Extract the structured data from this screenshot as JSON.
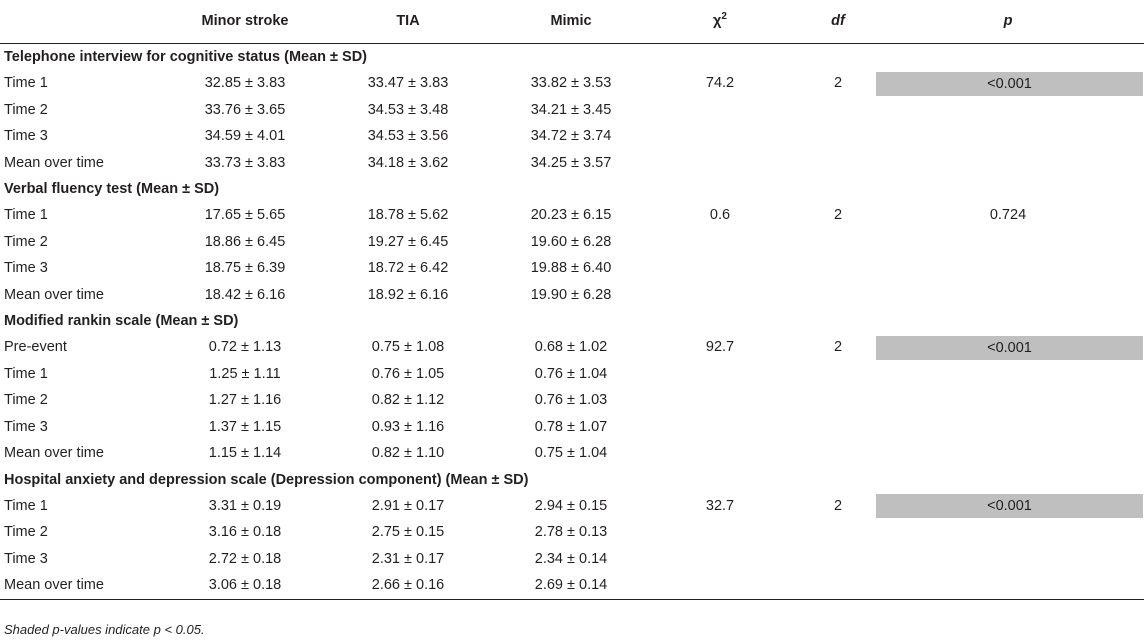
{
  "header": {
    "col_minor": "Minor stroke",
    "col_tia": "TIA",
    "col_mimic": "Mimic",
    "col_chi": "χ",
    "col_chi_sup": "2",
    "col_df": "df",
    "col_p": "p"
  },
  "sections": [
    {
      "title": "Telephone interview for cognitive status (Mean ± SD)",
      "rows": [
        {
          "label": "Time 1",
          "minor": "32.85 ± 3.83",
          "tia": "33.47 ± 3.83",
          "mimic": "33.82 ± 3.53",
          "chi": "74.2",
          "df": "2",
          "p": "<0.001"
        },
        {
          "label": "Time 2",
          "minor": "33.76 ± 3.65",
          "tia": "34.53 ± 3.48",
          "mimic": "34.21 ± 3.45",
          "chi": "",
          "df": "",
          "p": ""
        },
        {
          "label": "Time 3",
          "minor": "34.59 ± 4.01",
          "tia": "34.53 ± 3.56",
          "mimic": "34.72 ± 3.74",
          "chi": "",
          "df": "",
          "p": ""
        },
        {
          "label": "Mean over time",
          "minor": "33.73 ± 3.83",
          "tia": "34.18 ± 3.62",
          "mimic": "34.25 ± 3.57",
          "chi": "",
          "df": "",
          "p": ""
        }
      ]
    },
    {
      "title": "Verbal fluency test (Mean ± SD)",
      "rows": [
        {
          "label": "Time 1",
          "minor": "17.65 ± 5.65",
          "tia": "18.78 ± 5.62",
          "mimic": "20.23 ± 6.15",
          "chi": "0.6",
          "df": "2",
          "p": "0.724"
        },
        {
          "label": "Time 2",
          "minor": "18.86 ± 6.45",
          "tia": "19.27 ± 6.45",
          "mimic": "19.60 ± 6.28",
          "chi": "",
          "df": "",
          "p": ""
        },
        {
          "label": "Time 3",
          "minor": "18.75 ± 6.39",
          "tia": "18.72 ± 6.42",
          "mimic": "19.88 ± 6.40",
          "chi": "",
          "df": "",
          "p": ""
        },
        {
          "label": "Mean over time",
          "minor": "18.42 ± 6.16",
          "tia": "18.92 ± 6.16",
          "mimic": "19.90 ± 6.28",
          "chi": "",
          "df": "",
          "p": ""
        }
      ]
    },
    {
      "title": "Modified rankin scale (Mean ± SD)",
      "rows": [
        {
          "label": "Pre-event",
          "minor": "0.72 ± 1.13",
          "tia": "0.75 ± 1.08",
          "mimic": "0.68 ± 1.02",
          "chi": "92.7",
          "df": "2",
          "p": "<0.001"
        },
        {
          "label": "Time 1",
          "minor": "1.25 ± 1.11",
          "tia": "0.76 ± 1.05",
          "mimic": "0.76 ± 1.04",
          "chi": "",
          "df": "",
          "p": ""
        },
        {
          "label": "Time 2",
          "minor": "1.27 ± 1.16",
          "tia": "0.82 ± 1.12",
          "mimic": "0.76 ± 1.03",
          "chi": "",
          "df": "",
          "p": ""
        },
        {
          "label": "Time 3",
          "minor": "1.37 ± 1.15",
          "tia": "0.93 ± 1.16",
          "mimic": "0.78 ± 1.07",
          "chi": "",
          "df": "",
          "p": ""
        },
        {
          "label": "Mean over time",
          "minor": "1.15 ± 1.14",
          "tia": "0.82 ± 1.10",
          "mimic": "0.75 ± 1.04",
          "chi": "",
          "df": "",
          "p": ""
        }
      ]
    },
    {
      "title": "Hospital anxiety and depression scale (Depression component) (Mean ± SD)",
      "rows": [
        {
          "label": "Time 1",
          "minor": "3.31 ± 0.19",
          "tia": "2.91 ± 0.17",
          "mimic": "2.94 ± 0.15",
          "chi": "32.7",
          "df": "2",
          "p": "<0.001"
        },
        {
          "label": "Time 2",
          "minor": "3.16 ± 0.18",
          "tia": "2.75 ± 0.15",
          "mimic": "2.78 ± 0.13",
          "chi": "",
          "df": "",
          "p": ""
        },
        {
          "label": "Time 3",
          "minor": "2.72 ± 0.18",
          "tia": "2.31 ± 0.17",
          "mimic": "2.34 ± 0.14",
          "chi": "",
          "df": "",
          "p": ""
        },
        {
          "label": "Mean over time",
          "minor": "3.06 ± 0.18",
          "tia": "2.66 ± 0.16",
          "mimic": "2.69 ± 0.14",
          "chi": "",
          "df": "",
          "p": ""
        }
      ]
    }
  ],
  "shaded_p_values": [
    "<0.001"
  ],
  "shade_color": "#bfbfbf",
  "footnote": "Shaded p-values indicate p < 0.05."
}
